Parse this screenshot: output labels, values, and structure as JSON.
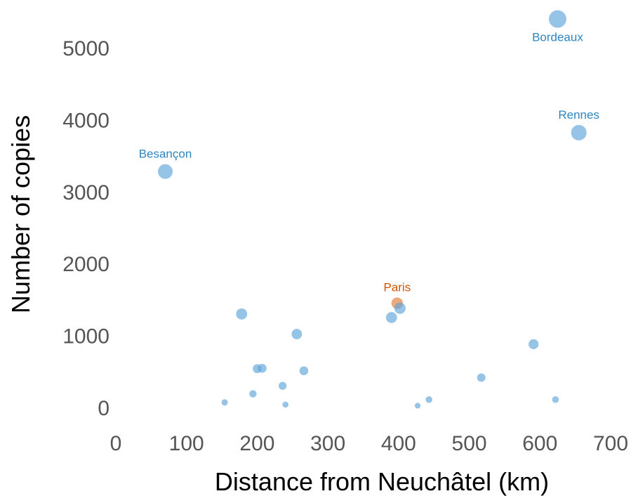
{
  "chart_data": {
    "type": "scatter",
    "title": "",
    "xlabel": "Distance from Neuchâtel (km)",
    "ylabel": "Number of copies",
    "xlim": [
      0,
      700
    ],
    "ylim": [
      0,
      5400
    ],
    "xticks": [
      0,
      100,
      200,
      300,
      400,
      500,
      600,
      700
    ],
    "yticks": [
      0,
      1000,
      2000,
      3000,
      4000,
      5000
    ],
    "grid": false,
    "colors": {
      "default": "#5DA5DA",
      "highlight": "#E07B39",
      "label_default": "#2E86C1",
      "label_highlight": "#D35400"
    },
    "points": [
      {
        "x": 70,
        "y": 3280,
        "size": 3280,
        "label": "Besançon",
        "highlight": false
      },
      {
        "x": 625,
        "y": 5400,
        "size": 5400,
        "label": "Bordeaux",
        "highlight": false
      },
      {
        "x": 655,
        "y": 3820,
        "size": 3820,
        "label": "Rennes",
        "highlight": false
      },
      {
        "x": 398,
        "y": 1450,
        "size": 1450,
        "label": "Paris",
        "highlight": true
      },
      {
        "x": 402,
        "y": 1380,
        "size": 1380,
        "label": "",
        "highlight": false
      },
      {
        "x": 390,
        "y": 1250,
        "size": 1250,
        "label": "",
        "highlight": false
      },
      {
        "x": 178,
        "y": 1300,
        "size": 1300,
        "label": "",
        "highlight": false
      },
      {
        "x": 256,
        "y": 1020,
        "size": 1020,
        "label": "",
        "highlight": false
      },
      {
        "x": 591,
        "y": 880,
        "size": 880,
        "label": "",
        "highlight": false
      },
      {
        "x": 200,
        "y": 540,
        "size": 540,
        "label": "",
        "highlight": false
      },
      {
        "x": 207,
        "y": 545,
        "size": 545,
        "label": "",
        "highlight": false
      },
      {
        "x": 266,
        "y": 510,
        "size": 510,
        "label": "",
        "highlight": false
      },
      {
        "x": 517,
        "y": 415,
        "size": 415,
        "label": "",
        "highlight": false
      },
      {
        "x": 236,
        "y": 300,
        "size": 300,
        "label": "",
        "highlight": false
      },
      {
        "x": 194,
        "y": 190,
        "size": 190,
        "label": "",
        "highlight": false
      },
      {
        "x": 443,
        "y": 110,
        "size": 110,
        "label": "",
        "highlight": false
      },
      {
        "x": 622,
        "y": 110,
        "size": 110,
        "label": "",
        "highlight": false
      },
      {
        "x": 154,
        "y": 70,
        "size": 70,
        "label": "",
        "highlight": false
      },
      {
        "x": 240,
        "y": 40,
        "size": 40,
        "label": "",
        "highlight": false
      },
      {
        "x": 427,
        "y": 25,
        "size": 25,
        "label": "",
        "highlight": false
      }
    ]
  }
}
